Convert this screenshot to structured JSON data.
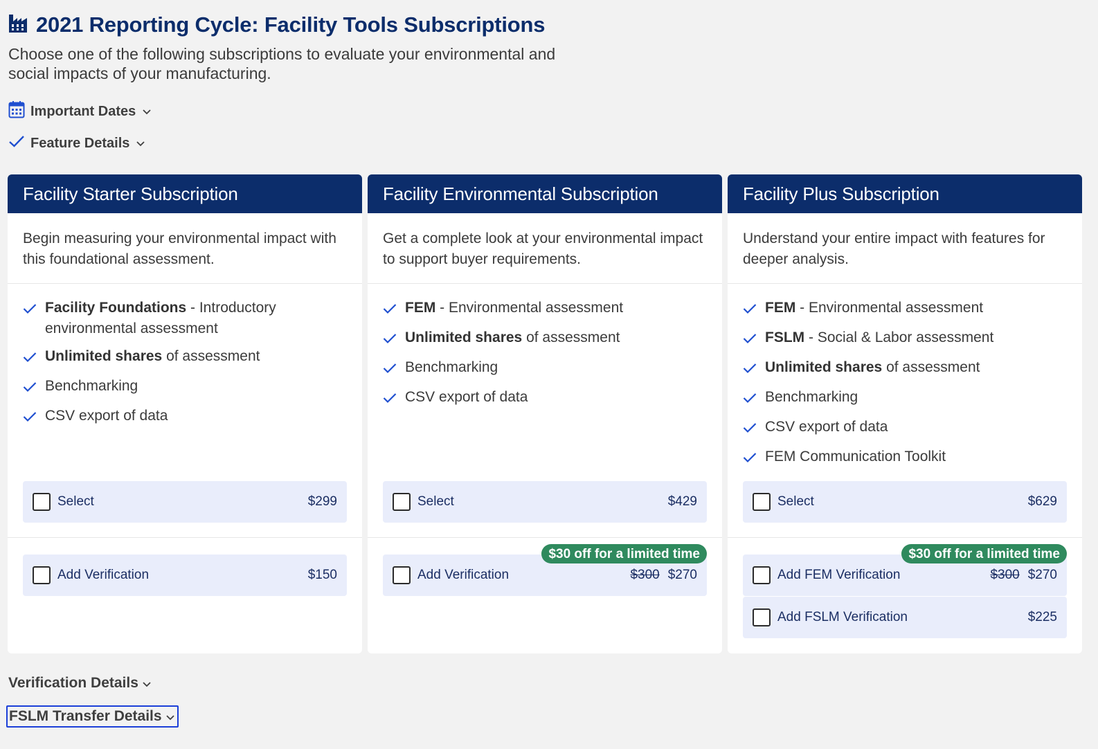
{
  "header": {
    "title": "2021 Reporting Cycle: Facility Tools Subscriptions",
    "subtitle": "Choose one of the following subscriptions to evaluate your environmental and social impacts of your manufacturing."
  },
  "toggles": {
    "important_dates": "Important Dates",
    "feature_details": "Feature Details",
    "verification_details": "Verification Details",
    "fslm_transfer_details": "FSLM Transfer Details"
  },
  "icons": {
    "title": "factory-icon",
    "dates": "calendar-icon",
    "features": "check-icon",
    "chevron": "chevron-down-icon",
    "checkbox": "checkbox-icon"
  },
  "colors": {
    "brand_navy": "#0c2d6b",
    "check_blue": "#1f4fd0",
    "option_bg": "#e9edfb",
    "promo_green": "#2f8a5e",
    "focus_ring": "#1c3fd8"
  },
  "cards": [
    {
      "title": "Facility Starter Subscription",
      "description": "Begin measuring your environmental impact with this foundational assessment.",
      "features": [
        {
          "bold": "Facility Foundations",
          "text": " - Introductory environmental assessment"
        },
        {
          "bold": "Unlimited shares",
          "text": " of assessment"
        },
        {
          "bold": "",
          "text": "Benchmarking"
        },
        {
          "bold": "",
          "text": "CSV export of data"
        }
      ],
      "select": {
        "label": "Select",
        "price": "$299"
      },
      "verifications": [
        {
          "label": "Add Verification",
          "old_price": "",
          "price": "$150"
        }
      ],
      "promo": ""
    },
    {
      "title": "Facility Environmental Subscription",
      "description": "Get a complete look at your environmental impact to support buyer requirements.",
      "features": [
        {
          "bold": "FEM",
          "text": " - Environmental assessment"
        },
        {
          "bold": "Unlimited shares",
          "text": " of assessment"
        },
        {
          "bold": "",
          "text": "Benchmarking"
        },
        {
          "bold": "",
          "text": "CSV export of data"
        }
      ],
      "select": {
        "label": "Select",
        "price": "$429"
      },
      "verifications": [
        {
          "label": "Add Verification",
          "old_price": "$300",
          "price": "$270"
        }
      ],
      "promo": "$30 off for a limited time"
    },
    {
      "title": "Facility Plus Subscription",
      "description": "Understand your entire impact with features for deeper analysis.",
      "features": [
        {
          "bold": "FEM",
          "text": " - Environmental assessment"
        },
        {
          "bold": "FSLM",
          "text": " - Social & Labor assessment"
        },
        {
          "bold": "Unlimited shares",
          "text": " of assessment"
        },
        {
          "bold": "",
          "text": "Benchmarking"
        },
        {
          "bold": "",
          "text": "CSV export of data"
        },
        {
          "bold": "",
          "text": "FEM Communication Toolkit"
        }
      ],
      "select": {
        "label": "Select",
        "price": "$629"
      },
      "verifications": [
        {
          "label": "Add FEM Verification",
          "old_price": "$300",
          "price": "$270"
        },
        {
          "label": "Add FSLM Verification",
          "old_price": "",
          "price": "$225"
        }
      ],
      "promo": "$30 off for a limited time"
    }
  ]
}
